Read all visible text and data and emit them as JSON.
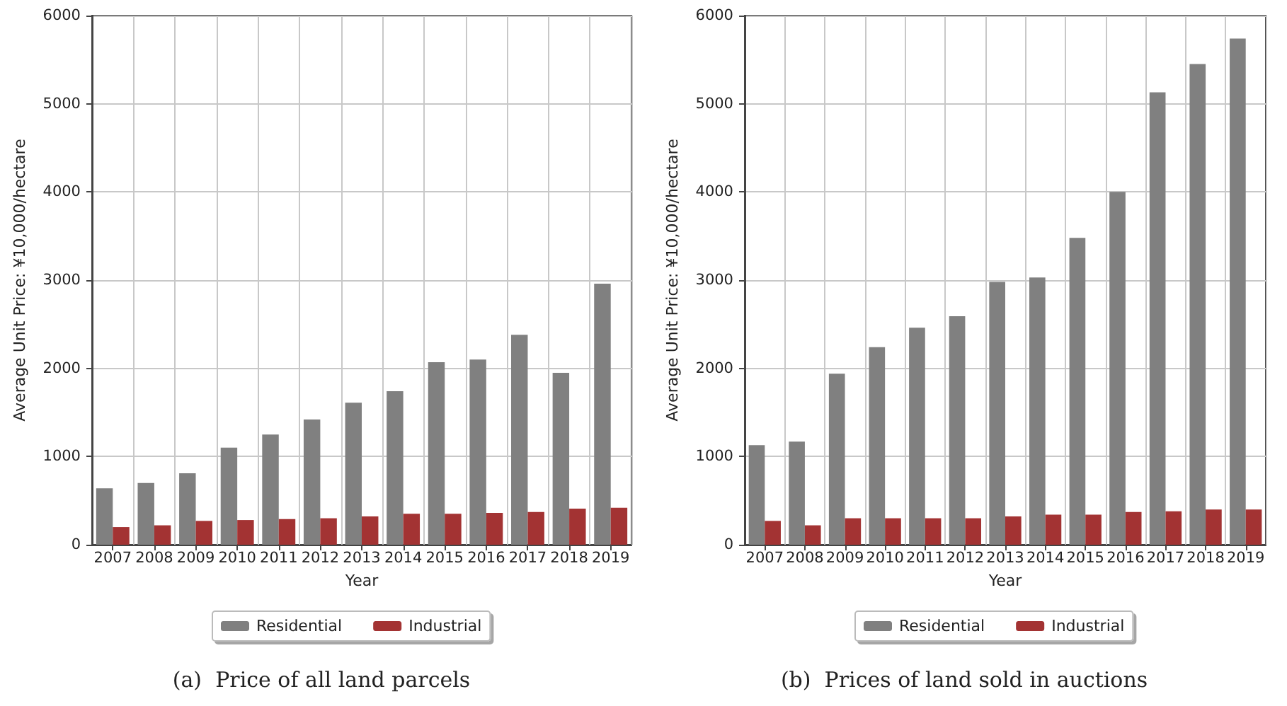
{
  "chart_data": [
    {
      "type": "bar",
      "title": "(a)  Price of all land parcels",
      "xlabel": "Year",
      "ylabel": "Average Unit Price: ¥10,000/hectare",
      "categories": [
        "2007",
        "2008",
        "2009",
        "2010",
        "2011",
        "2012",
        "2013",
        "2014",
        "2015",
        "2016",
        "2017",
        "2018",
        "2019"
      ],
      "series": [
        {
          "name": "Residential",
          "color": "#808080",
          "values": [
            640,
            700,
            810,
            1100,
            1250,
            1420,
            1610,
            1740,
            2070,
            2100,
            2380,
            1950,
            2960
          ]
        },
        {
          "name": "Industrial",
          "color": "#a33333",
          "values": [
            200,
            220,
            270,
            280,
            290,
            300,
            320,
            350,
            350,
            360,
            370,
            410,
            420
          ]
        }
      ],
      "ylim": [
        0,
        6000
      ],
      "yticks": [
        0,
        1000,
        2000,
        3000,
        4000,
        5000,
        6000
      ],
      "grid": true,
      "legend": "bottom"
    },
    {
      "type": "bar",
      "title": "(b)  Prices of land sold in auctions",
      "xlabel": "Year",
      "ylabel": "Average Unit Price: ¥10,000/hectare",
      "categories": [
        "2007",
        "2008",
        "2009",
        "2010",
        "2011",
        "2012",
        "2013",
        "2014",
        "2015",
        "2016",
        "2017",
        "2018",
        "2019"
      ],
      "series": [
        {
          "name": "Residential",
          "color": "#808080",
          "values": [
            1130,
            1170,
            1940,
            2240,
            2460,
            2590,
            2980,
            3030,
            3480,
            4000,
            5130,
            5450,
            5740
          ]
        },
        {
          "name": "Industrial",
          "color": "#a33333",
          "values": [
            270,
            220,
            300,
            300,
            300,
            300,
            320,
            340,
            340,
            370,
            380,
            400,
            400
          ]
        }
      ],
      "ylim": [
        0,
        6000
      ],
      "yticks": [
        0,
        1000,
        2000,
        3000,
        4000,
        5000,
        6000
      ],
      "grid": true,
      "legend": "bottom"
    }
  ]
}
